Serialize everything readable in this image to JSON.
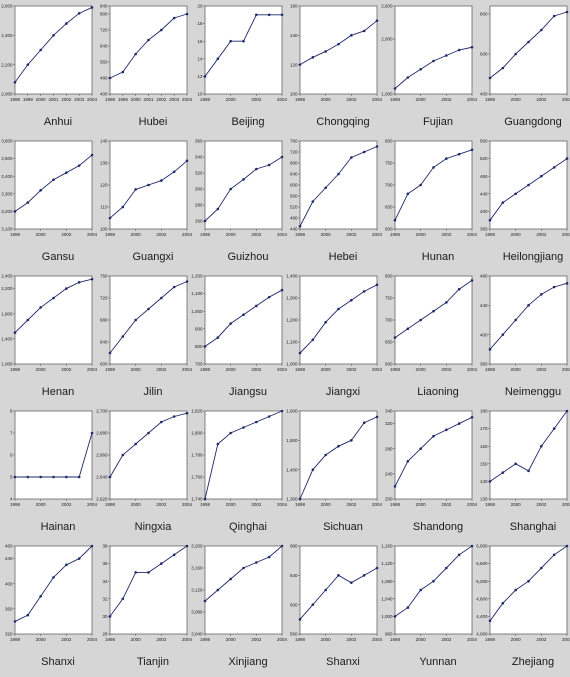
{
  "figure": {
    "x_tick_labels_full": [
      "1998",
      "1999",
      "2000",
      "2001",
      "2002",
      "2003",
      "2004"
    ],
    "x_tick_labels_short": [
      "1998",
      "2000",
      "2002",
      "2004"
    ],
    "line_color": "#1f2a6b",
    "background": "#d6d6d6",
    "plot_background": "#ffffff"
  },
  "chart_data": [
    {
      "type": "line",
      "title": "Anhui",
      "x": [
        1998,
        1999,
        2000,
        2001,
        2002,
        2003,
        2004
      ],
      "y": [
        2080,
        2200,
        2300,
        2400,
        2480,
        2550,
        2590
      ],
      "ylim": [
        2000,
        2600
      ],
      "yticks": [
        "2,000",
        "2,200",
        "2,400",
        "2,600"
      ],
      "xticks": "full"
    },
    {
      "type": "line",
      "title": "Hubei",
      "x": [
        1998,
        1999,
        2000,
        2001,
        2002,
        2003,
        2004
      ],
      "y": [
        480,
        510,
        600,
        670,
        720,
        780,
        800
      ],
      "ylim": [
        400,
        840
      ],
      "yticks": [
        "400",
        "480",
        "560",
        "640",
        "720",
        "800",
        "840"
      ],
      "xticks": "full"
    },
    {
      "type": "line",
      "title": "Beijing",
      "x": [
        1998,
        1999,
        2000,
        2001,
        2002,
        2003,
        2004
      ],
      "y": [
        12,
        14,
        16,
        16,
        19,
        19,
        19
      ],
      "ylim": [
        10,
        20
      ],
      "yticks": [
        "10",
        "12",
        "14",
        "16",
        "18",
        "20"
      ],
      "xticks": "short"
    },
    {
      "type": "line",
      "title": "Chongqing",
      "x": [
        1998,
        1999,
        2000,
        2001,
        2002,
        2003,
        2004
      ],
      "y": [
        120,
        125,
        129,
        134,
        140,
        143,
        150
      ],
      "ylim": [
        100,
        160
      ],
      "yticks": [
        "100",
        "120",
        "140",
        "160"
      ],
      "xticks": "short"
    },
    {
      "type": "line",
      "title": "Fujian",
      "x": [
        1998,
        1999,
        2000,
        2001,
        2002,
        2003,
        2004
      ],
      "y": [
        1100,
        1300,
        1450,
        1600,
        1700,
        1800,
        1850
      ],
      "ylim": [
        1000,
        2600
      ],
      "yticks": [
        "1,000",
        "2,000",
        "2,600"
      ],
      "xticks": "short"
    },
    {
      "type": "line",
      "title": "Guangdong",
      "x": [
        1998,
        1999,
        2000,
        2001,
        2002,
        2003,
        2004
      ],
      "y": [
        480,
        530,
        600,
        660,
        720,
        790,
        810
      ],
      "ylim": [
        400,
        840
      ],
      "yticks": [
        "400",
        "600",
        "800"
      ],
      "xticks": "short"
    },
    {
      "type": "line",
      "title": "Gansu",
      "x": [
        1998,
        1999,
        2000,
        2001,
        2002,
        2003,
        2004
      ],
      "y": [
        3200,
        3250,
        3320,
        3380,
        3420,
        3460,
        3520
      ],
      "ylim": [
        3100,
        3600
      ],
      "yticks": [
        "3,100",
        "3,200",
        "3,300",
        "3,400",
        "3,500",
        "3,600"
      ],
      "xticks": "short"
    },
    {
      "type": "line",
      "title": "Guangxi",
      "x": [
        1998,
        1999,
        2000,
        2001,
        2002,
        2003,
        2004
      ],
      "y": [
        105,
        110,
        118,
        120,
        122,
        126,
        131
      ],
      "ylim": [
        100,
        140
      ],
      "yticks": [
        "100",
        "110",
        "120",
        "130",
        "140"
      ],
      "xticks": "short"
    },
    {
      "type": "line",
      "title": "Guizhou",
      "x": [
        1998,
        1999,
        2000,
        2001,
        2002,
        2003,
        2004
      ],
      "y": [
        260,
        275,
        300,
        312,
        325,
        330,
        340
      ],
      "ylim": [
        250,
        360
      ],
      "yticks": [
        "260",
        "280",
        "300",
        "320",
        "340",
        "360"
      ],
      "xticks": "short"
    },
    {
      "type": "line",
      "title": "Hebei",
      "x": [
        1998,
        1999,
        2000,
        2001,
        2002,
        2003,
        2004
      ],
      "y": [
        450,
        540,
        590,
        640,
        700,
        720,
        740
      ],
      "ylim": [
        440,
        760
      ],
      "yticks": [
        "440",
        "480",
        "520",
        "560",
        "600",
        "640",
        "680",
        "720",
        "760"
      ],
      "xticks": "short"
    },
    {
      "type": "line",
      "title": "Hunan",
      "x": [
        1998,
        1999,
        2000,
        2001,
        2002,
        2003,
        2004
      ],
      "y": [
        620,
        680,
        700,
        740,
        760,
        770,
        780
      ],
      "ylim": [
        600,
        800
      ],
      "yticks": [
        "600",
        "650",
        "700",
        "750",
        "800"
      ],
      "xticks": "short"
    },
    {
      "type": "line",
      "title": "Heilongjiang",
      "x": [
        1998,
        1999,
        2000,
        2001,
        2002,
        2003,
        2004
      ],
      "y": [
        380,
        420,
        440,
        460,
        480,
        500,
        520
      ],
      "ylim": [
        360,
        560
      ],
      "yticks": [
        "360",
        "400",
        "440",
        "480",
        "520",
        "560"
      ],
      "xticks": "short"
    },
    {
      "type": "line",
      "title": "Henan",
      "x": [
        1998,
        1999,
        2000,
        2001,
        2002,
        2003,
        2004
      ],
      "y": [
        1500,
        1700,
        1900,
        2050,
        2200,
        2300,
        2350
      ],
      "ylim": [
        1000,
        2400
      ],
      "yticks": [
        "1,000",
        "1,400",
        "1,800",
        "2,200",
        "2,400"
      ],
      "xticks": "short"
    },
    {
      "type": "line",
      "title": "Jilin",
      "x": [
        1998,
        1999,
        2000,
        2001,
        2002,
        2003,
        2004
      ],
      "y": [
        620,
        650,
        680,
        700,
        720,
        740,
        750
      ],
      "ylim": [
        600,
        760
      ],
      "yticks": [
        "600",
        "640",
        "680",
        "720",
        "760"
      ],
      "xticks": "short"
    },
    {
      "type": "line",
      "title": "Jiangsu",
      "x": [
        1998,
        1999,
        2000,
        2001,
        2002,
        2003,
        2004
      ],
      "y": [
        800,
        850,
        930,
        980,
        1030,
        1080,
        1120
      ],
      "ylim": [
        700,
        1200
      ],
      "yticks": [
        "700",
        "800",
        "900",
        "1,000",
        "1,100",
        "1,200"
      ],
      "xticks": "short"
    },
    {
      "type": "line",
      "title": "Jiangxi",
      "x": [
        1998,
        1999,
        2000,
        2001,
        2002,
        2003,
        2004
      ],
      "y": [
        1050,
        1110,
        1190,
        1250,
        1290,
        1330,
        1360
      ],
      "ylim": [
        1000,
        1400
      ],
      "yticks": [
        "1,000",
        "1,100",
        "1,200",
        "1,300",
        "1,400"
      ],
      "xticks": "short"
    },
    {
      "type": "line",
      "title": "Liaoning",
      "x": [
        1998,
        1999,
        2000,
        2001,
        2002,
        2003,
        2004
      ],
      "y": [
        660,
        680,
        700,
        720,
        740,
        770,
        790
      ],
      "ylim": [
        600,
        800
      ],
      "yticks": [
        "600",
        "650",
        "700",
        "750",
        "800"
      ],
      "xticks": "short"
    },
    {
      "type": "line",
      "title": "Neimenggu",
      "x": [
        1998,
        1999,
        2000,
        2001,
        2002,
        2003,
        2004
      ],
      "y": [
        380,
        400,
        420,
        440,
        455,
        465,
        470
      ],
      "ylim": [
        360,
        480
      ],
      "yticks": [
        "360",
        "400",
        "440",
        "480"
      ],
      "xticks": "short"
    },
    {
      "type": "line",
      "title": "Hainan",
      "x": [
        1998,
        1999,
        2000,
        2001,
        2002,
        2003,
        2004
      ],
      "y": [
        5,
        5,
        5,
        5,
        5,
        5,
        7
      ],
      "ylim": [
        4,
        8
      ],
      "yticks": [
        "4",
        "5",
        "6",
        "7",
        "8"
      ],
      "xticks": "short"
    },
    {
      "type": "line",
      "title": "Ningxia",
      "x": [
        1998,
        1999,
        2000,
        2001,
        2002,
        2003,
        2004
      ],
      "y": [
        2640,
        2660,
        2670,
        2680,
        2690,
        2695,
        2698
      ],
      "ylim": [
        2620,
        2700
      ],
      "yticks": [
        "2,620",
        "2,640",
        "2,660",
        "2,680",
        "2,700"
      ],
      "xticks": "short"
    },
    {
      "type": "line",
      "title": "Qinghai",
      "x": [
        1998,
        1999,
        2000,
        2001,
        2002,
        2003,
        2004
      ],
      "y": [
        1740,
        1790,
        1800,
        1805,
        1810,
        1815,
        1820
      ],
      "ylim": [
        1740,
        1820
      ],
      "yticks": [
        "1,740",
        "1,760",
        "1,780",
        "1,800",
        "1,820"
      ],
      "xticks": "short"
    },
    {
      "type": "line",
      "title": "Sichuan",
      "x": [
        1998,
        1999,
        2000,
        2001,
        2002,
        2003,
        2004
      ],
      "y": [
        1300,
        1400,
        1450,
        1480,
        1500,
        1560,
        1580
      ],
      "ylim": [
        1300,
        1600
      ],
      "yticks": [
        "1,300",
        "1,400",
        "1,500",
        "1,600"
      ],
      "xticks": "short"
    },
    {
      "type": "line",
      "title": "Shandong",
      "x": [
        1998,
        1999,
        2000,
        2001,
        2002,
        2003,
        2004
      ],
      "y": [
        220,
        260,
        280,
        300,
        310,
        320,
        330
      ],
      "ylim": [
        200,
        340
      ],
      "yticks": [
        "200",
        "240",
        "280",
        "320",
        "340"
      ],
      "xticks": "short"
    },
    {
      "type": "line",
      "title": "Shanghai",
      "x": [
        1998,
        1999,
        2000,
        2001,
        2002,
        2003,
        2004
      ],
      "y": [
        140,
        145,
        150,
        146,
        160,
        170,
        180
      ],
      "ylim": [
        130,
        180
      ],
      "yticks": [
        "130",
        "140",
        "150",
        "160",
        "170",
        "180"
      ],
      "xticks": "short"
    },
    {
      "type": "line",
      "title": "Shanxi",
      "x": [
        1998,
        1999,
        2000,
        2001,
        2002,
        2003,
        2004
      ],
      "y": [
        340,
        350,
        380,
        410,
        430,
        440,
        460
      ],
      "ylim": [
        320,
        460
      ],
      "yticks": [
        "320",
        "360",
        "400",
        "440",
        "460"
      ],
      "xticks": "short"
    },
    {
      "type": "line",
      "title": "Tianjin",
      "x": [
        1998,
        1999,
        2000,
        2001,
        2002,
        2003,
        2004
      ],
      "y": [
        30,
        32,
        35,
        35,
        36,
        37,
        38
      ],
      "ylim": [
        28,
        38
      ],
      "yticks": [
        "28",
        "30",
        "32",
        "34",
        "36",
        "38"
      ],
      "xticks": "short"
    },
    {
      "type": "line",
      "title": "Xinjiang",
      "x": [
        1998,
        1999,
        2000,
        2001,
        2002,
        2003,
        2004
      ],
      "y": [
        3100,
        3120,
        3140,
        3160,
        3170,
        3180,
        3200
      ],
      "ylim": [
        3040,
        3200
      ],
      "yticks": [
        "3,040",
        "3,080",
        "3,120",
        "3,160",
        "3,200"
      ],
      "xticks": "short"
    },
    {
      "type": "line",
      "title": "Shanxi",
      "x": [
        1998,
        1999,
        2000,
        2001,
        2002,
        2003,
        2004
      ],
      "y": [
        580,
        600,
        620,
        640,
        630,
        640,
        650
      ],
      "ylim": [
        560,
        680
      ],
      "yticks": [
        "560",
        "600",
        "640",
        "680"
      ],
      "xticks": "short"
    },
    {
      "type": "line",
      "title": "Yunnan",
      "x": [
        1998,
        1999,
        2000,
        2001,
        2002,
        2003,
        2004
      ],
      "y": [
        1000,
        1020,
        1060,
        1080,
        1110,
        1140,
        1160
      ],
      "ylim": [
        960,
        1160
      ],
      "yticks": [
        "960",
        "1,000",
        "1,040",
        "1,080",
        "1,120",
        "1,160"
      ],
      "xticks": "short"
    },
    {
      "type": "line",
      "title": "Zhejiang",
      "x": [
        1998,
        1999,
        2000,
        2001,
        2002,
        2003,
        2004
      ],
      "y": [
        4300,
        4700,
        5000,
        5200,
        5500,
        5800,
        6000
      ],
      "ylim": [
        4000,
        6000
      ],
      "yticks": [
        "4,000",
        "4,400",
        "4,800",
        "5,200",
        "5,600",
        "6,000"
      ],
      "xticks": "short"
    }
  ]
}
